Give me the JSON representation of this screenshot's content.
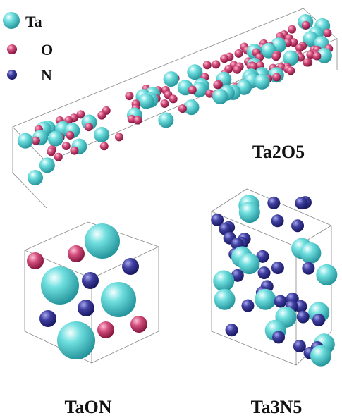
{
  "legend": [
    {
      "label": "Ta"
    },
    {
      "label": "O"
    },
    {
      "label": "N"
    }
  ],
  "structures": [
    {
      "label": "Ta2O5"
    },
    {
      "label": "TaON"
    },
    {
      "label": "Ta3N5"
    }
  ]
}
